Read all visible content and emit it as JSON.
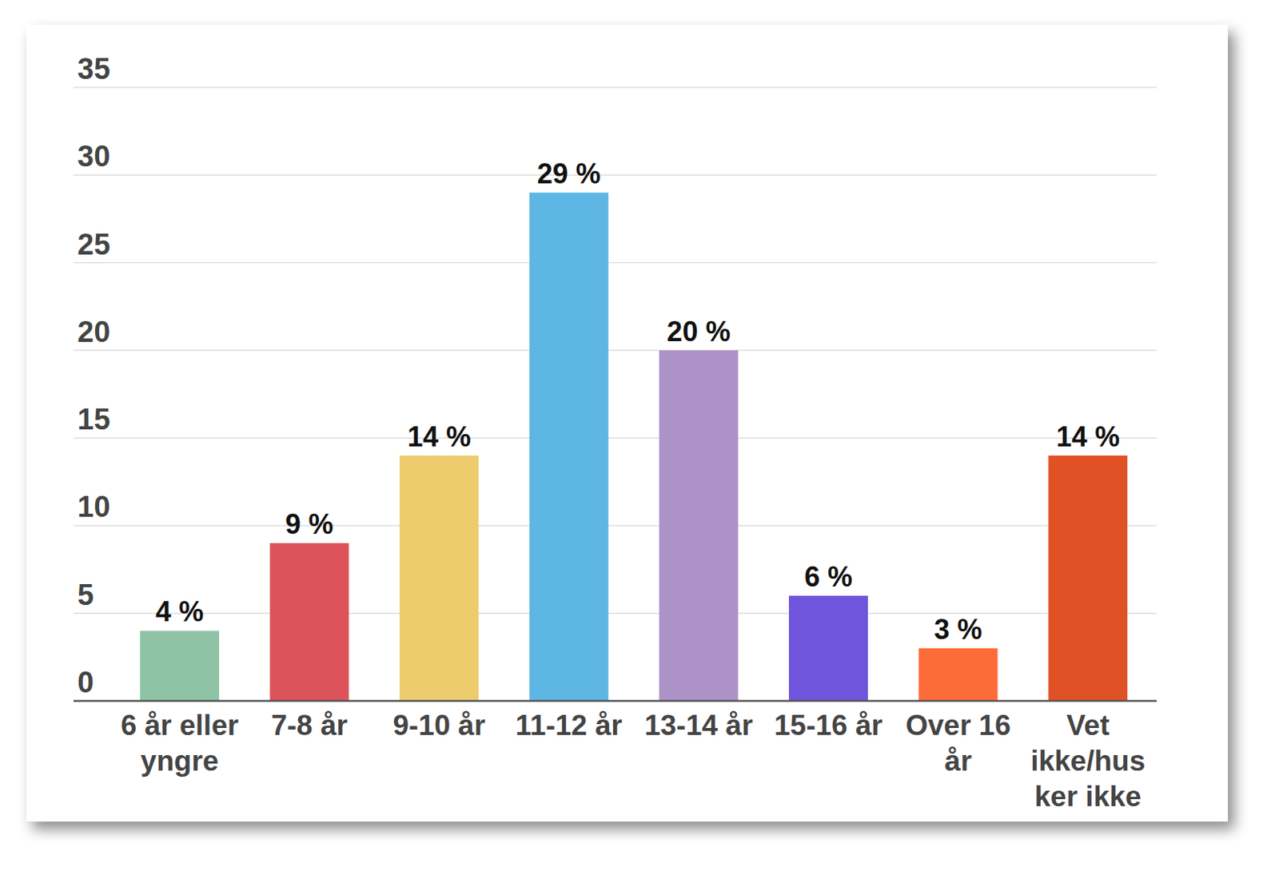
{
  "chart_data": {
    "type": "bar",
    "categories": [
      "6 år eller\nyngre",
      "7-8 år",
      "9-10 år",
      "11-12 år",
      "13-14 år",
      "15-16 år",
      "Over 16\når",
      "Vet\nikke/hus\nker ikke"
    ],
    "values": [
      4,
      9,
      14,
      29,
      20,
      6,
      3,
      14
    ],
    "value_labels": [
      "4 %",
      "9 %",
      "14 %",
      "29 %",
      "20 %",
      "6 %",
      "3 %",
      "14 %"
    ],
    "colors": [
      "#8fc3a6",
      "#dc535a",
      "#eecb6c",
      "#5eb6e4",
      "#ad92c7",
      "#6e55db",
      "#fd6b39",
      "#e15126"
    ],
    "ylim": [
      0,
      35
    ],
    "yticks": [
      0,
      5,
      10,
      15,
      20,
      25,
      30,
      35
    ],
    "grid": true,
    "data_labels": true
  }
}
